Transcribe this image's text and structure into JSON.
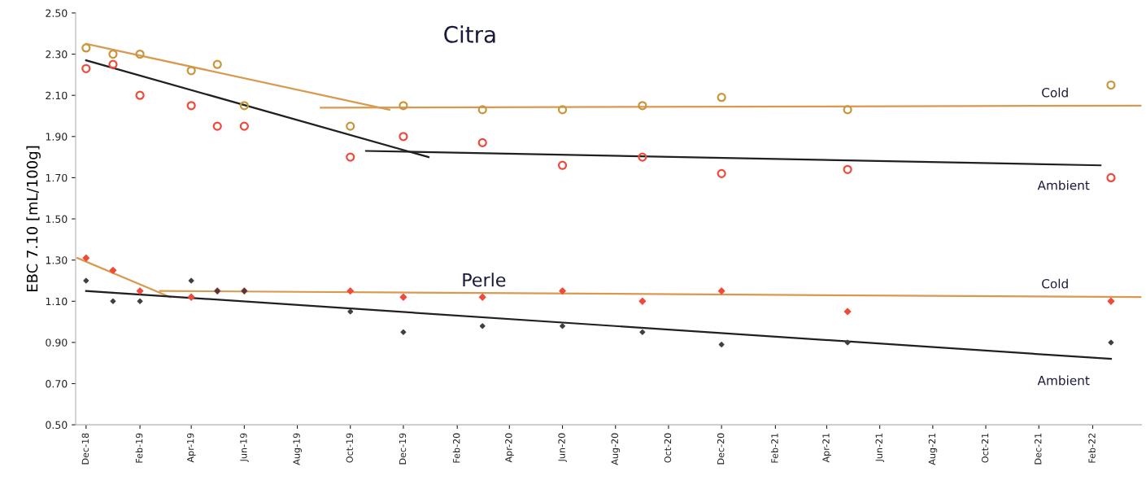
{
  "chart_data": {
    "type": "scatter",
    "ylabel": "EBC 7.10 [mL/100g]",
    "x": [
      "2018-12-01",
      "2019-01-01",
      "2019-02-01",
      "2019-04-01",
      "2019-05-01",
      "2019-06-01",
      "2019-10-01",
      "2019-12-01",
      "2020-03-01",
      "2020-06-01",
      "2020-09-01",
      "2020-12-01",
      "2021-04-25",
      "2022-02-22"
    ],
    "series": [
      {
        "marker": "circle",
        "color": "#c8963c",
        "values": [
          2.33,
          2.3,
          2.3,
          2.22,
          2.25,
          2.05,
          1.95,
          2.05,
          2.03,
          2.03,
          2.05,
          2.09,
          2.03,
          2.15
        ]
      },
      {
        "marker": "circle",
        "color": "#f04a3a",
        "values": [
          2.23,
          2.25,
          2.1,
          2.05,
          1.95,
          1.95,
          1.8,
          1.9,
          1.87,
          1.76,
          1.8,
          1.72,
          1.74,
          1.7
        ]
      },
      {
        "marker": "diamond",
        "color": "#f04a3a",
        "values": [
          1.31,
          1.25,
          1.15,
          1.12,
          1.15,
          1.15,
          1.15,
          1.12,
          1.12,
          1.15,
          1.1,
          1.15,
          1.05,
          1.1
        ]
      },
      {
        "marker": "diamond",
        "color": "#404040",
        "values": [
          1.2,
          1.1,
          1.1,
          1.2,
          1.15,
          1.15,
          1.05,
          0.95,
          0.98,
          0.98,
          0.95,
          0.89,
          0.9,
          0.9
        ]
      },
      {
        "type": "line",
        "color": "#d89a50",
        "x": [
          "2018-12-01",
          "2019-11-15"
        ],
        "values": [
          2.35,
          2.03
        ]
      },
      {
        "type": "line",
        "color": "#d89a50",
        "x": [
          "2019-08-28",
          "2022-03-29"
        ],
        "values": [
          2.04,
          2.05
        ]
      },
      {
        "type": "line",
        "color": "#202020",
        "x": [
          "2018-12-01",
          "2019-12-30"
        ],
        "values": [
          2.27,
          1.8
        ]
      },
      {
        "type": "line",
        "color": "#202020",
        "x": [
          "2019-10-19",
          "2022-02-10"
        ],
        "values": [
          1.83,
          1.76
        ]
      },
      {
        "type": "line",
        "color": "#d89a50",
        "x": [
          "2018-11-21",
          "2019-03-08"
        ],
        "values": [
          1.31,
          1.12
        ]
      },
      {
        "type": "line",
        "color": "#d89a50",
        "x": [
          "2019-02-24",
          "2022-03-29"
        ],
        "values": [
          1.15,
          1.12
        ]
      },
      {
        "type": "line",
        "color": "#202020",
        "x": [
          "2018-12-01",
          "2022-02-22"
        ],
        "values": [
          1.15,
          0.82
        ]
      }
    ],
    "annotations": [
      "Citra",
      "Cold",
      "Ambient",
      "Perle",
      "Cold",
      "Ambient"
    ],
    "xlim": [
      "2018-11-19",
      "2022-03-29"
    ],
    "xticks": [
      {
        "value": "2018-12-01",
        "label": "Dec-18"
      },
      {
        "value": "2019-02-01",
        "label": "Feb-19"
      },
      {
        "value": "2019-04-01",
        "label": "Apr-19"
      },
      {
        "value": "2019-06-01",
        "label": "Jun-19"
      },
      {
        "value": "2019-08-01",
        "label": "Aug-19"
      },
      {
        "value": "2019-10-01",
        "label": "Oct-19"
      },
      {
        "value": "2019-12-01",
        "label": "Dec-19"
      },
      {
        "value": "2020-02-01",
        "label": "Feb-20"
      },
      {
        "value": "2020-04-01",
        "label": "Apr-20"
      },
      {
        "value": "2020-06-01",
        "label": "Jun-20"
      },
      {
        "value": "2020-08-01",
        "label": "Aug-20"
      },
      {
        "value": "2020-10-01",
        "label": "Oct-20"
      },
      {
        "value": "2020-12-01",
        "label": "Dec-20"
      },
      {
        "value": "2021-02-01",
        "label": "Feb-21"
      },
      {
        "value": "2021-04-01",
        "label": "Apr-21"
      },
      {
        "value": "2021-06-01",
        "label": "Jun-21"
      },
      {
        "value": "2021-08-01",
        "label": "Aug-21"
      },
      {
        "value": "2021-10-01",
        "label": "Oct-21"
      },
      {
        "value": "2021-12-01",
        "label": "Dec-21"
      },
      {
        "value": "2022-02-01",
        "label": "Feb-22"
      }
    ],
    "ylim": [
      0.5,
      2.5
    ],
    "yticks": [
      {
        "value": 0.5,
        "label": "0.50"
      },
      {
        "value": 0.7,
        "label": "0.70"
      },
      {
        "value": 0.9,
        "label": "0.90"
      },
      {
        "value": 1.1,
        "label": "1.10"
      },
      {
        "value": 1.3,
        "label": "1.30"
      },
      {
        "value": 1.5,
        "label": "1.50"
      },
      {
        "value": 1.7,
        "label": "1.70"
      },
      {
        "value": 1.9,
        "label": "1.90"
      },
      {
        "value": 2.1,
        "label": "2.10"
      },
      {
        "value": 2.3,
        "label": "2.30"
      },
      {
        "value": 2.5,
        "label": "2.50"
      }
    ],
    "grid": false,
    "legend": false
  }
}
